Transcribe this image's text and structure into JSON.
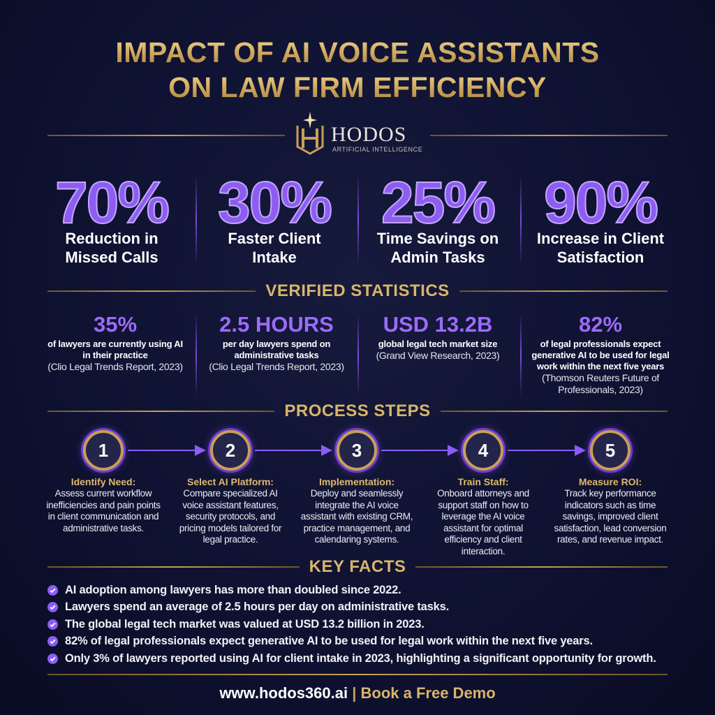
{
  "header": {
    "title_line1": "IMPACT OF AI VOICE ASSISTANTS",
    "title_line2": "ON LAW FIRM EFFICIENCY"
  },
  "logo": {
    "name": "HODOS",
    "tagline": "ARTIFICIAL INTELLIGENCE"
  },
  "headline_stats": [
    {
      "value": "70%",
      "label_line1": "Reduction in",
      "label_line2": "Missed Calls"
    },
    {
      "value": "30%",
      "label_line1": "Faster Client",
      "label_line2": "Intake"
    },
    {
      "value": "25%",
      "label_line1": "Time Savings on",
      "label_line2": "Admin Tasks"
    },
    {
      "value": "90%",
      "label_line1": "Increase in Client",
      "label_line2": "Satisfaction"
    }
  ],
  "verified": {
    "heading": "VERIFIED STATISTICS",
    "items": [
      {
        "value": "35%",
        "description": "of lawyers are currently using AI in their practice",
        "source": "(Clio Legal Trends Report, 2023)"
      },
      {
        "value": "2.5 HOURS",
        "description": "per day lawyers spend on administrative tasks",
        "source": "(Clio Legal Trends Report, 2023)"
      },
      {
        "value": "USD 13.2B",
        "description": "global legal tech market size",
        "source": "(Grand View Research, 2023)"
      },
      {
        "value": "82%",
        "description": "of legal professionals expect generative AI to be used for legal work within the next five years",
        "source": "(Thomson Reuters Future of Professionals, 2023)"
      }
    ]
  },
  "process": {
    "heading": "PROCESS STEPS",
    "steps": [
      {
        "number": "1",
        "title": "Identify Need:",
        "description": "Assess current workflow inefficiencies and pain points in client communication and administrative tasks."
      },
      {
        "number": "2",
        "title": "Select AI Platform:",
        "description": "Compare specialized AI voice assistant features, security protocols, and pricing models tailored for legal practice."
      },
      {
        "number": "3",
        "title": "Implementation:",
        "description": "Deploy and seamlessly integrate the AI voice assistant with existing CRM, practice management, and calendaring systems."
      },
      {
        "number": "4",
        "title": "Train Staff:",
        "description": "Onboard attorneys and support staff on how to leverage the AI voice assistant for optimal efficiency and client interaction."
      },
      {
        "number": "5",
        "title": "Measure ROI:",
        "description": "Track key performance indicators such as time savings, improved client satisfaction, lead conversion rates, and revenue impact."
      }
    ]
  },
  "key_facts": {
    "heading": "KEY FACTS",
    "items": [
      "AI adoption among lawyers has more than doubled since 2022.",
      "Lawyers spend an average of 2.5 hours per day on administrative tasks.",
      "The global legal tech market was valued at USD 13.2 billion in 2023.",
      "82% of legal professionals expect generative AI to be used for legal work within the next five years.",
      "Only 3% of lawyers reported using AI for client intake in 2023, highlighting a significant opportunity for growth."
    ]
  },
  "footer": {
    "url": "www.hodos360.ai",
    "separator": "|",
    "cta": "Book a Free Demo"
  }
}
